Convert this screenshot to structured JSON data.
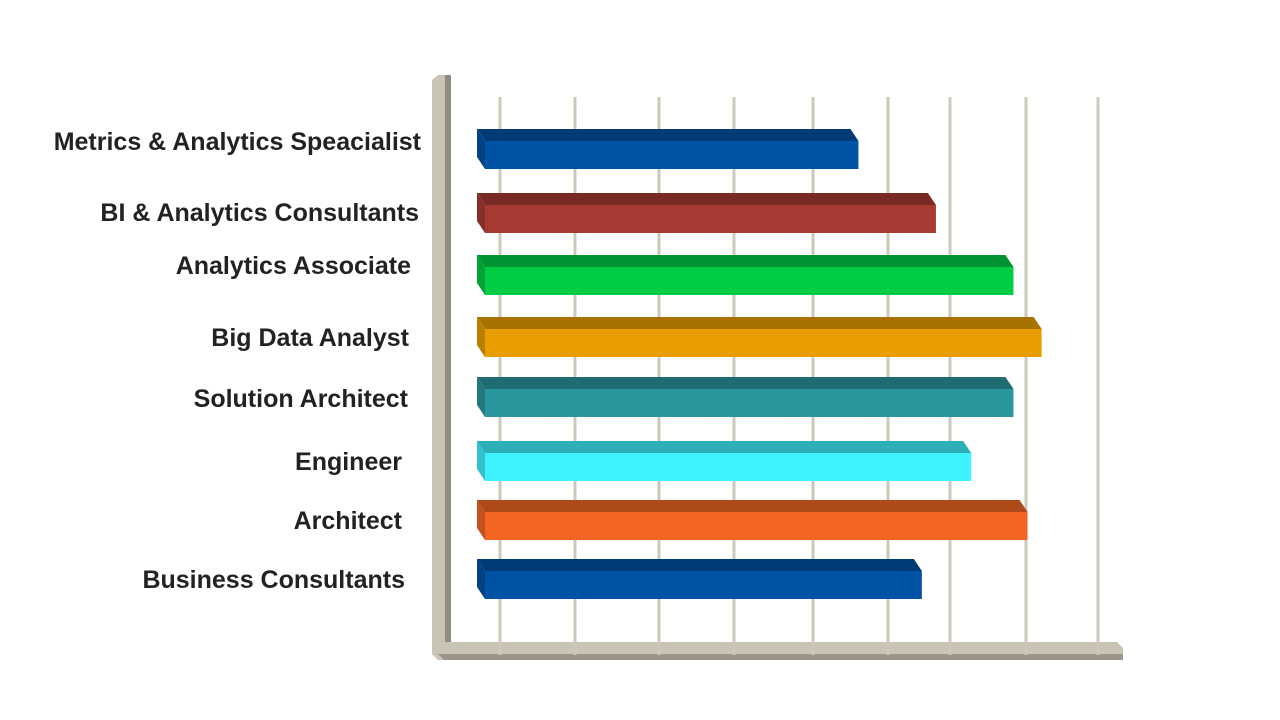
{
  "chart_data": {
    "type": "bar",
    "orientation": "horizontal",
    "style": "3d",
    "title": "",
    "xlabel": "",
    "ylabel": "",
    "grid": true,
    "legend": "none",
    "categories": [
      "Metrics & Analytics Speacialist",
      "BI & Analytics Consultants",
      "Analytics Associate",
      "Big Data Analyst",
      "Solution Architect",
      "Engineer",
      "Architect",
      "Business Consultants"
    ],
    "values": [
      5.3,
      6.4,
      7.5,
      7.9,
      7.5,
      6.9,
      7.7,
      6.2
    ],
    "xlim": [
      0,
      8.7
    ],
    "gridline_count": 9,
    "colors": [
      "#0052a5",
      "#a83a34",
      "#00cc44",
      "#e89e00",
      "#2a969e",
      "#3ef3ff",
      "#f26522",
      "#0052a5"
    ]
  }
}
